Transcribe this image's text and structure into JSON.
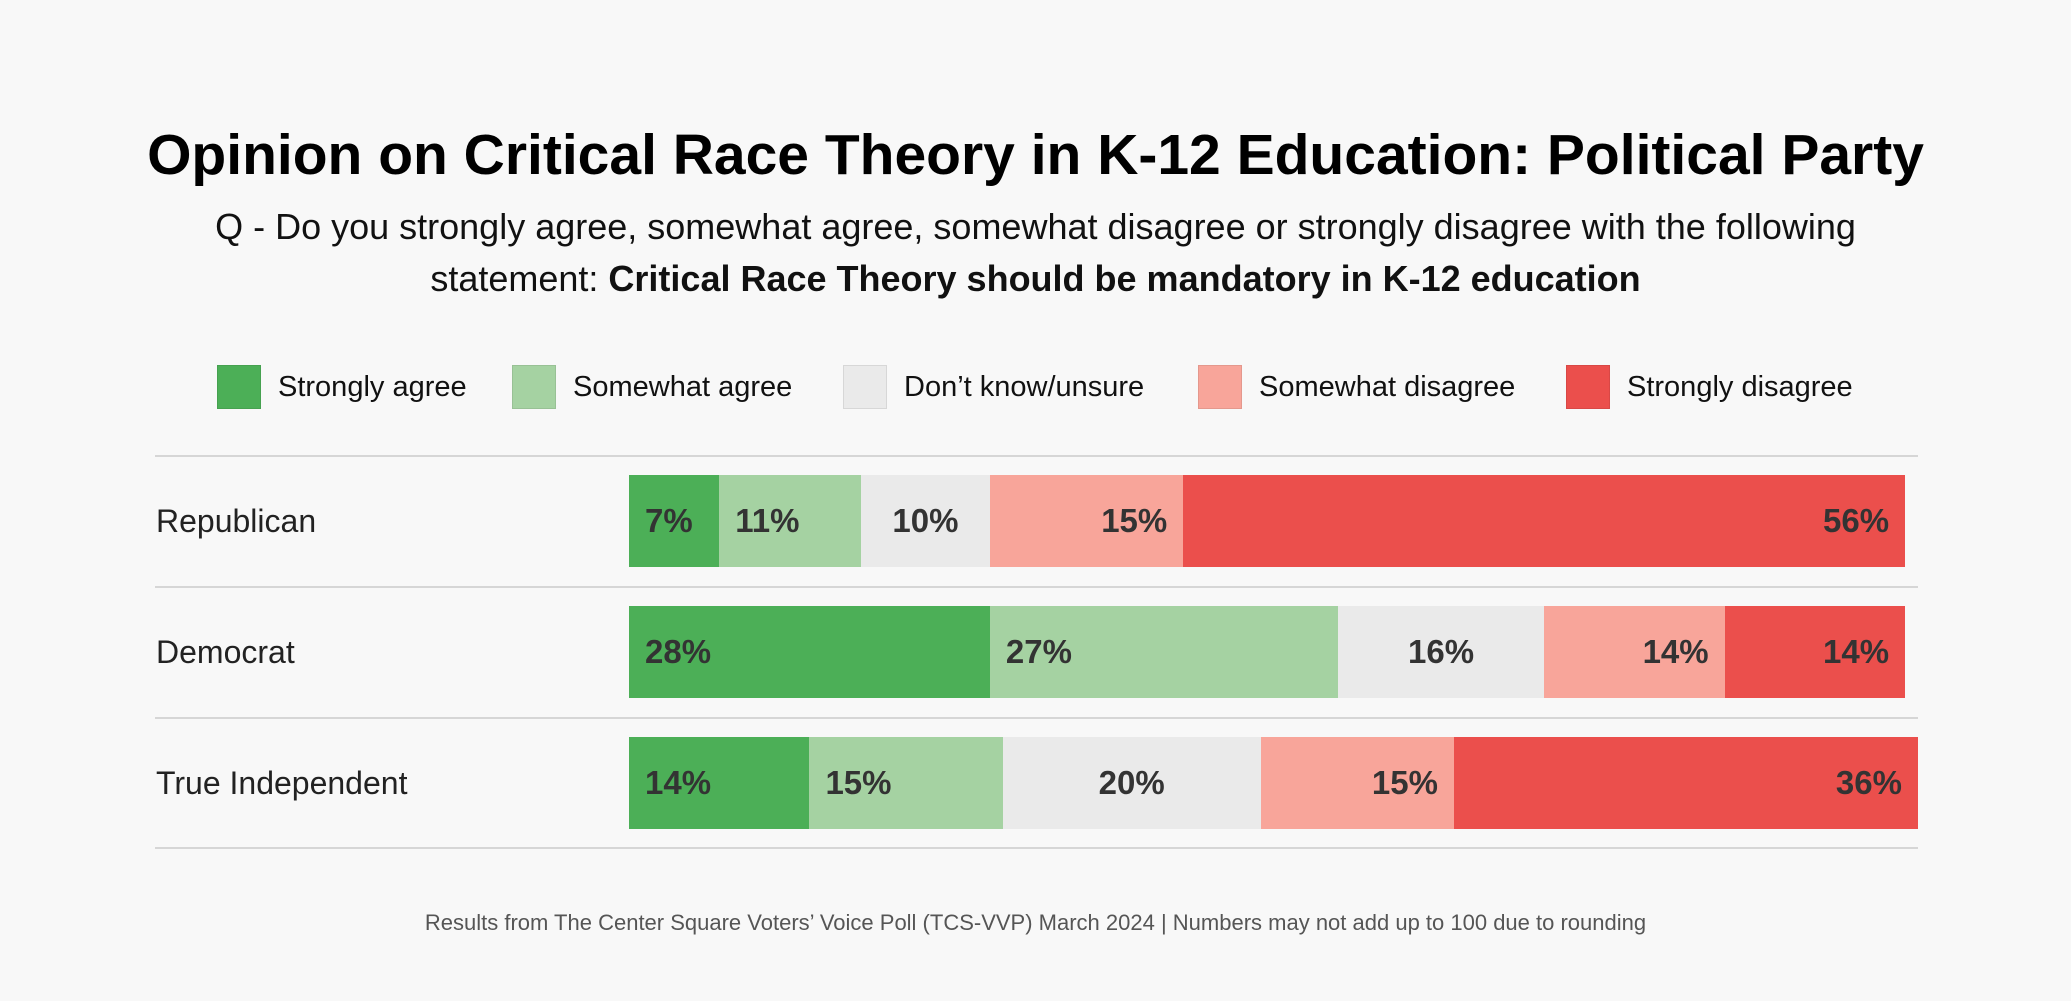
{
  "title": "Opinion on Critical Race Theory in K-12 Education: Political Party",
  "subtitle_line1": "Q -  Do you strongly agree, somewhat agree, somewhat disagree or strongly disagree with the following",
  "subtitle_line2_prefix": "statement: ",
  "subtitle_line2_bold": "Critical Race Theory should be mandatory in K-12 education",
  "footer": "Results from The Center Square Voters’ Voice Poll (TCS-VVP) March 2024 | Numbers may not add up to 100 due to rounding",
  "chart_data": {
    "type": "bar",
    "orientation": "horizontal-stacked",
    "unit": "%",
    "legend_position": "top",
    "grid": false,
    "categories": [
      "Republican",
      "Democrat",
      "True Independent"
    ],
    "series": [
      {
        "name": "Strongly agree",
        "color": "#4CAF57",
        "values": [
          7,
          28,
          14
        ],
        "labels": [
          "7%",
          "28%",
          "14%"
        ]
      },
      {
        "name": "Somewhat agree",
        "color": "#A5D2A2",
        "values": [
          11,
          27,
          15
        ],
        "labels": [
          "11%",
          "27%",
          "15%"
        ]
      },
      {
        "name": "Don’t know/unsure",
        "color": "#EAEAEA",
        "values": [
          10,
          16,
          20
        ],
        "labels": [
          "10%",
          "16%",
          "20%"
        ]
      },
      {
        "name": "Somewhat disagree",
        "color": "#F8A59A",
        "values": [
          15,
          14,
          15
        ],
        "labels": [
          "15%",
          "14%",
          "15%"
        ]
      },
      {
        "name": "Strongly disagree",
        "color": "#EB4F4C",
        "values": [
          56,
          14,
          36
        ],
        "labels": [
          "56%",
          "14%",
          "36%"
        ]
      }
    ]
  }
}
